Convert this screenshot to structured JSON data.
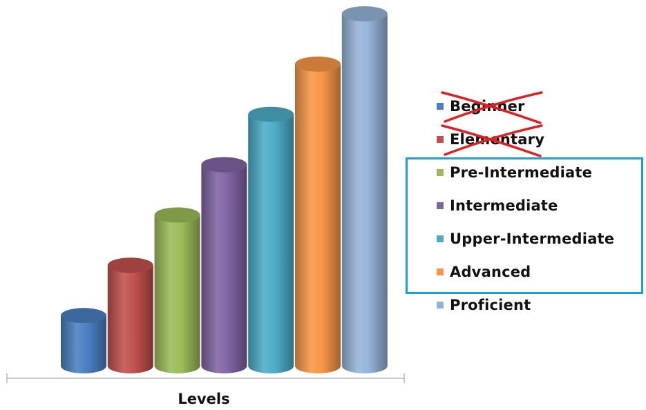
{
  "chart_data": {
    "type": "bar",
    "style": "3d-cylinder",
    "xlabel": "Levels",
    "ylabel": "",
    "grid": false,
    "legend_position": "right",
    "categories": [
      "Beginner",
      "Elementary",
      "Pre-Intermediate",
      "Intermediate",
      "Upper-Intermediate",
      "Advanced",
      "Proficient"
    ],
    "values": [
      1,
      2,
      3,
      4,
      5,
      6,
      7
    ],
    "ylim": [
      0,
      7
    ],
    "series": [
      {
        "name": "Beginner",
        "value": 1,
        "color": "#4a7fc1",
        "struck_out": true
      },
      {
        "name": "Elementary",
        "value": 2,
        "color": "#c0504d",
        "struck_out": true
      },
      {
        "name": "Pre-Intermediate",
        "value": 3,
        "color": "#9bbb59",
        "struck_out": false
      },
      {
        "name": "Intermediate",
        "value": 4,
        "color": "#8064a2",
        "struck_out": false
      },
      {
        "name": "Upper-Intermediate",
        "value": 5,
        "color": "#4bacc6",
        "struck_out": false
      },
      {
        "name": "Advanced",
        "value": 6,
        "color": "#f79646",
        "struck_out": false
      },
      {
        "name": "Proficient",
        "value": 7,
        "color": "#95b3d7",
        "struck_out": false
      }
    ],
    "highlighted": [
      "Pre-Intermediate",
      "Intermediate",
      "Upper-Intermediate",
      "Advanced"
    ],
    "strike_color": "#e02020",
    "highlight_color": "#1ba1d8"
  }
}
